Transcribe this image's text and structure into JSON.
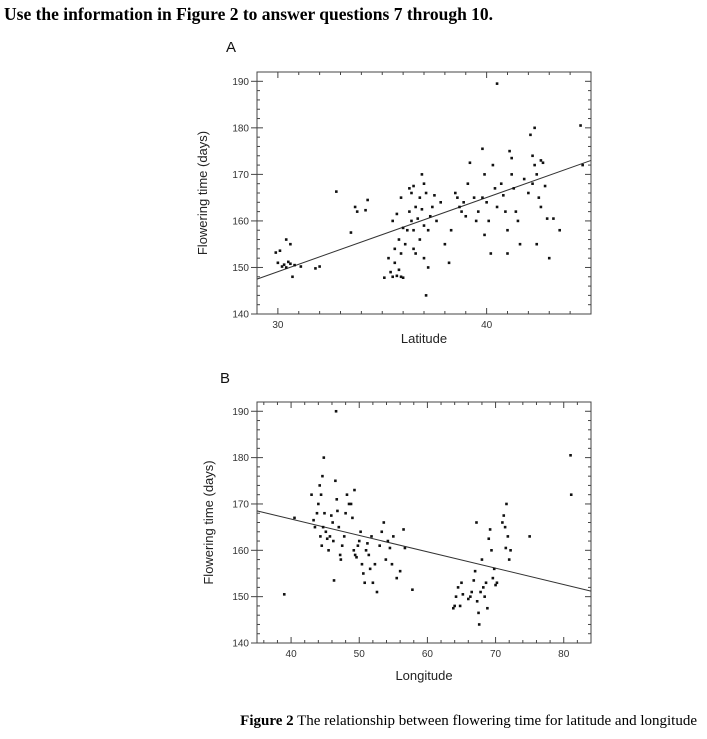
{
  "instruction": "Use the information in Figure 2 to answer questions 7 through 10.",
  "caption": {
    "label": "Figure 2",
    "text": "The relationship between flowering time for latitude and longitude"
  },
  "chart_data": [
    {
      "type": "scatter",
      "panel": "A",
      "xlabel": "Latitude",
      "ylabel": "Flowering time (days)",
      "xlim": [
        29,
        45
      ],
      "ylim": [
        140,
        192
      ],
      "xticks": [
        30,
        40
      ],
      "yticks": [
        140,
        150,
        160,
        170,
        180,
        190
      ],
      "trendline": {
        "x": [
          29,
          45
        ],
        "y": [
          147.5,
          173
        ]
      },
      "points": [
        [
          29.9,
          153.2
        ],
        [
          30.1,
          153.6
        ],
        [
          30.0,
          151.0
        ],
        [
          30.2,
          150.2
        ],
        [
          30.3,
          150.6
        ],
        [
          30.4,
          150.0
        ],
        [
          30.5,
          151.2
        ],
        [
          30.6,
          150.8
        ],
        [
          30.4,
          156.0
        ],
        [
          30.6,
          155.0
        ],
        [
          30.7,
          148.0
        ],
        [
          30.8,
          150.5
        ],
        [
          31.1,
          150.2
        ],
        [
          31.8,
          149.8
        ],
        [
          32.0,
          150.2
        ],
        [
          32.8,
          166.3
        ],
        [
          33.5,
          157.5
        ],
        [
          33.7,
          163.0
        ],
        [
          33.8,
          162.0
        ],
        [
          34.3,
          164.5
        ],
        [
          34.2,
          162.3
        ],
        [
          35.1,
          147.8
        ],
        [
          35.3,
          152.0
        ],
        [
          35.4,
          149.0
        ],
        [
          35.5,
          148.0
        ],
        [
          35.6,
          151.0
        ],
        [
          35.7,
          148.2
        ],
        [
          35.8,
          149.5
        ],
        [
          35.9,
          148.0
        ],
        [
          36.0,
          147.8
        ],
        [
          35.6,
          154.0
        ],
        [
          35.8,
          156.0
        ],
        [
          35.9,
          153.0
        ],
        [
          36.1,
          155.0
        ],
        [
          36.2,
          158.0
        ],
        [
          35.5,
          160.0
        ],
        [
          35.7,
          161.5
        ],
        [
          35.9,
          165.0
        ],
        [
          36.0,
          158.5
        ],
        [
          36.3,
          167.0
        ],
        [
          36.4,
          166.0
        ],
        [
          36.5,
          167.5
        ],
        [
          36.3,
          162.0
        ],
        [
          36.4,
          160.0
        ],
        [
          36.5,
          158.0
        ],
        [
          36.6,
          163.0
        ],
        [
          36.7,
          160.5
        ],
        [
          36.8,
          165.0
        ],
        [
          36.9,
          162.5
        ],
        [
          36.5,
          154.0
        ],
        [
          36.6,
          153.0
        ],
        [
          36.8,
          156.0
        ],
        [
          36.9,
          170.0
        ],
        [
          37.0,
          168.0
        ],
        [
          37.1,
          166.0
        ],
        [
          37.0,
          159.0
        ],
        [
          37.2,
          158.0
        ],
        [
          37.3,
          161.0
        ],
        [
          37.4,
          163.0
        ],
        [
          37.5,
          165.5
        ],
        [
          37.6,
          160.0
        ],
        [
          37.8,
          164.0
        ],
        [
          37.1,
          144.0
        ],
        [
          37.2,
          150.0
        ],
        [
          37.0,
          152.0
        ],
        [
          38.0,
          155.0
        ],
        [
          38.2,
          151.0
        ],
        [
          38.3,
          158.0
        ],
        [
          38.5,
          166.0
        ],
        [
          38.6,
          165.0
        ],
        [
          38.7,
          163.0
        ],
        [
          38.8,
          162.0
        ],
        [
          38.9,
          164.0
        ],
        [
          39.0,
          161.0
        ],
        [
          39.1,
          168.0
        ],
        [
          39.2,
          172.5
        ],
        [
          39.4,
          165.0
        ],
        [
          39.5,
          160.0
        ],
        [
          39.6,
          162.0
        ],
        [
          39.8,
          175.5
        ],
        [
          39.8,
          165.0
        ],
        [
          39.9,
          170.0
        ],
        [
          40.0,
          164.0
        ],
        [
          40.1,
          160.0
        ],
        [
          40.2,
          153.0
        ],
        [
          39.9,
          157.0
        ],
        [
          40.3,
          172.0
        ],
        [
          40.4,
          167.0
        ],
        [
          40.5,
          163.0
        ],
        [
          40.5,
          189.5
        ],
        [
          40.7,
          168.0
        ],
        [
          40.8,
          165.5
        ],
        [
          40.9,
          162.0
        ],
        [
          41.0,
          153.0
        ],
        [
          41.1,
          175.0
        ],
        [
          41.2,
          173.5
        ],
        [
          41.3,
          167.0
        ],
        [
          41.4,
          162.0
        ],
        [
          41.5,
          160.0
        ],
        [
          41.6,
          155.0
        ],
        [
          41.2,
          170.0
        ],
        [
          41.0,
          158.0
        ],
        [
          42.0,
          166.0
        ],
        [
          42.2,
          168.0
        ],
        [
          42.3,
          172.0
        ],
        [
          42.4,
          170.0
        ],
        [
          42.5,
          165.0
        ],
        [
          42.6,
          163.0
        ],
        [
          42.2,
          174.0
        ],
        [
          42.3,
          180.0
        ],
        [
          42.4,
          155.0
        ],
        [
          42.6,
          173.0
        ],
        [
          42.7,
          172.5
        ],
        [
          42.8,
          167.5
        ],
        [
          42.9,
          160.5
        ],
        [
          43.0,
          152.0
        ],
        [
          43.2,
          160.5
        ],
        [
          43.5,
          158.0
        ],
        [
          44.5,
          180.5
        ],
        [
          44.6,
          172.0
        ],
        [
          42.1,
          178.5
        ],
        [
          41.8,
          169.0
        ]
      ]
    },
    {
      "type": "scatter",
      "panel": "B",
      "xlabel": "Longitude",
      "ylabel": "Flowering time (days)",
      "xlim": [
        35,
        84
      ],
      "ylim": [
        140,
        192
      ],
      "xticks": [
        40,
        50,
        60,
        70,
        80
      ],
      "yticks": [
        140,
        150,
        160,
        170,
        180,
        190
      ],
      "trendline": {
        "x": [
          35,
          84
        ],
        "y": [
          168.5,
          151.2
        ]
      },
      "points": [
        [
          39.0,
          150.5
        ],
        [
          40.5,
          167.0
        ],
        [
          43.0,
          172.0
        ],
        [
          43.3,
          166.5
        ],
        [
          43.5,
          165.0
        ],
        [
          43.8,
          168.0
        ],
        [
          44.0,
          170.0
        ],
        [
          44.2,
          174.0
        ],
        [
          44.4,
          172.0
        ],
        [
          44.6,
          176.0
        ],
        [
          44.8,
          180.0
        ],
        [
          44.3,
          163.0
        ],
        [
          44.5,
          161.0
        ],
        [
          44.7,
          165.0
        ],
        [
          44.9,
          168.0
        ],
        [
          45.1,
          164.0
        ],
        [
          45.3,
          162.5
        ],
        [
          45.5,
          160.0
        ],
        [
          45.7,
          163.0
        ],
        [
          45.9,
          167.5
        ],
        [
          46.1,
          166.0
        ],
        [
          46.2,
          162.0
        ],
        [
          46.5,
          175.0
        ],
        [
          46.7,
          171.0
        ],
        [
          46.8,
          168.5
        ],
        [
          47.0,
          165.0
        ],
        [
          47.2,
          159.0
        ],
        [
          47.5,
          161.0
        ],
        [
          47.8,
          163.0
        ],
        [
          48.0,
          168.0
        ],
        [
          48.2,
          172.0
        ],
        [
          48.5,
          170.0
        ],
        [
          46.6,
          190.0
        ],
        [
          46.3,
          153.5
        ],
        [
          49.0,
          167.0
        ],
        [
          49.2,
          160.0
        ],
        [
          49.4,
          159.0
        ],
        [
          49.6,
          158.5
        ],
        [
          49.8,
          161.0
        ],
        [
          50.0,
          162.0
        ],
        [
          50.2,
          164.0
        ],
        [
          50.4,
          157.0
        ],
        [
          50.6,
          155.0
        ],
        [
          50.8,
          153.0
        ],
        [
          51.0,
          160.0
        ],
        [
          51.2,
          161.5
        ],
        [
          51.4,
          159.0
        ],
        [
          51.6,
          156.0
        ],
        [
          51.8,
          163.0
        ],
        [
          52.0,
          153.0
        ],
        [
          52.3,
          157.0
        ],
        [
          52.6,
          151.0
        ],
        [
          53.0,
          161.0
        ],
        [
          53.3,
          164.0
        ],
        [
          53.6,
          166.0
        ],
        [
          53.9,
          158.0
        ],
        [
          54.2,
          162.0
        ],
        [
          54.5,
          160.5
        ],
        [
          54.8,
          157.0
        ],
        [
          55.0,
          163.0
        ],
        [
          55.5,
          154.0
        ],
        [
          56.0,
          155.5
        ],
        [
          56.5,
          164.5
        ],
        [
          56.7,
          160.5
        ],
        [
          57.8,
          151.5
        ],
        [
          49.3,
          173.0
        ],
        [
          48.8,
          170.0
        ],
        [
          47.3,
          158.0
        ],
        [
          63.8,
          147.5
        ],
        [
          64.0,
          148.0
        ],
        [
          64.2,
          150.0
        ],
        [
          64.5,
          152.0
        ],
        [
          64.8,
          148.0
        ],
        [
          65.0,
          153.0
        ],
        [
          65.2,
          150.5
        ],
        [
          66.0,
          149.5
        ],
        [
          66.3,
          150.0
        ],
        [
          66.5,
          151.0
        ],
        [
          66.8,
          153.5
        ],
        [
          67.0,
          155.5
        ],
        [
          67.3,
          149.0
        ],
        [
          67.5,
          146.5
        ],
        [
          67.8,
          151.0
        ],
        [
          67.2,
          166.0
        ],
        [
          68.0,
          158.0
        ],
        [
          68.2,
          152.0
        ],
        [
          68.4,
          150.0
        ],
        [
          68.6,
          153.0
        ],
        [
          68.8,
          147.5
        ],
        [
          69.0,
          162.5
        ],
        [
          69.2,
          164.5
        ],
        [
          69.4,
          160.0
        ],
        [
          69.6,
          154.0
        ],
        [
          69.8,
          156.0
        ],
        [
          70.0,
          152.5
        ],
        [
          70.2,
          153.0
        ],
        [
          67.6,
          144.0
        ],
        [
          71.0,
          166.0
        ],
        [
          71.2,
          167.5
        ],
        [
          71.4,
          165.0
        ],
        [
          71.5,
          160.5
        ],
        [
          71.6,
          170.0
        ],
        [
          71.8,
          163.0
        ],
        [
          72.0,
          158.0
        ],
        [
          72.2,
          160.0
        ],
        [
          75.0,
          163.0
        ],
        [
          81.0,
          180.5
        ],
        [
          81.1,
          172.0
        ]
      ]
    }
  ]
}
